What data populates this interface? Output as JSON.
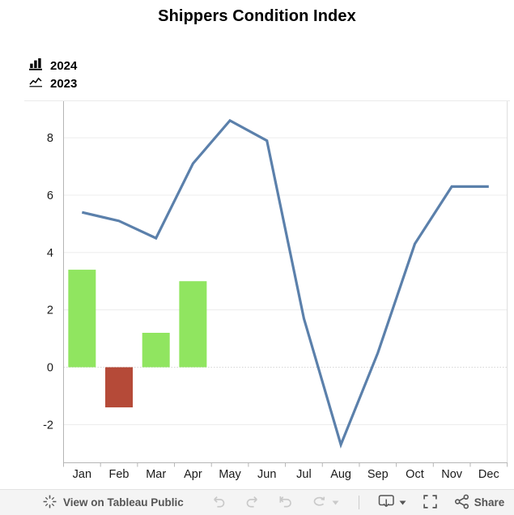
{
  "title": "Shippers Condition Index",
  "legend": {
    "items": [
      {
        "label": "2024",
        "icon": "bar-chart-icon"
      },
      {
        "label": "2023",
        "icon": "line-chart-icon"
      }
    ]
  },
  "chart_data": {
    "type": "combo",
    "title": "Shippers Condition Index",
    "categories": [
      "Jan",
      "Feb",
      "Mar",
      "Apr",
      "May",
      "Jun",
      "Jul",
      "Aug",
      "Sep",
      "Oct",
      "Nov",
      "Dec"
    ],
    "series": [
      {
        "name": "2024",
        "type": "bar",
        "values": [
          3.4,
          -1.4,
          1.2,
          3.0,
          null,
          null,
          null,
          null,
          null,
          null,
          null,
          null
        ],
        "color_positive": "#90E560",
        "color_negative": "#B54A38"
      },
      {
        "name": "2023",
        "type": "line",
        "values": [
          5.4,
          5.1,
          4.5,
          7.1,
          8.6,
          7.9,
          1.7,
          -2.7,
          0.5,
          4.3,
          6.3,
          6.3
        ],
        "color": "#5B80AB"
      }
    ],
    "xlabel": "",
    "ylabel": "",
    "y_ticks": [
      8,
      6,
      4,
      2,
      0,
      -2
    ],
    "ylim": [
      -3.3,
      9.3
    ],
    "grid": "horizontal",
    "zero_line_style": "dotted",
    "legend_position": "top-left"
  },
  "colors": {
    "bar_positive": "#90E560",
    "bar_negative": "#B54A38",
    "line_2023": "#5B80AB",
    "gridline": "#ececec",
    "axis_line": "#b5b5b5",
    "tick_label": "#1a1a1a",
    "toolbar_bg": "#f4f4f4",
    "toolbar_fg": "#555555",
    "disabled_icon": "#c9c9c9"
  },
  "toolbar": {
    "view_on_label": "View on Tableau Public",
    "share_label": "Share",
    "icons": [
      "tableau-logo-icon",
      "undo-icon",
      "redo-icon",
      "revert-icon",
      "refresh-icon",
      "caret-down-icon",
      "download-icon",
      "fullscreen-icon",
      "share-icon"
    ]
  }
}
